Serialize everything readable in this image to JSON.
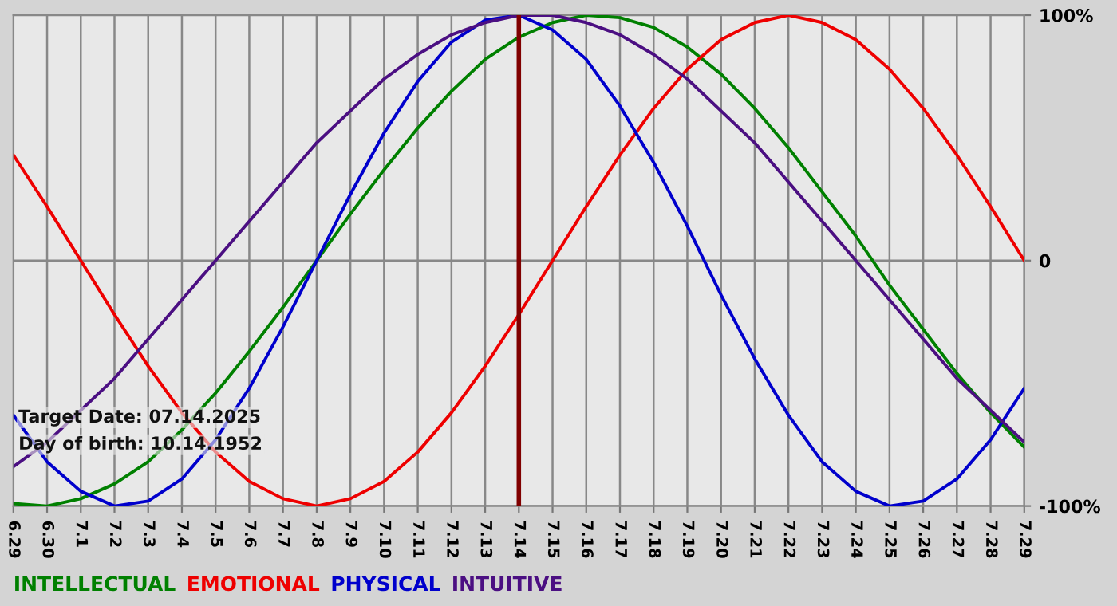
{
  "chart_data": {
    "type": "line",
    "categories": [
      "6.29",
      "6.30",
      "7.1",
      "7.2",
      "7.3",
      "7.4",
      "7.5",
      "7.6",
      "7.7",
      "7.8",
      "7.9",
      "7.10",
      "7.11",
      "7.12",
      "7.13",
      "7.14",
      "7.15",
      "7.16",
      "7.17",
      "7.18",
      "7.19",
      "7.20",
      "7.21",
      "7.22",
      "7.23",
      "7.24",
      "7.25",
      "7.26",
      "7.27",
      "7.28",
      "7.29"
    ],
    "series": [
      {
        "name": "INTELLECTUAL",
        "color": "#008000",
        "values": [
          -99,
          -100,
          -97,
          -91,
          -82,
          -69,
          -54,
          -37,
          -19,
          0,
          19,
          37,
          54,
          69,
          82,
          91,
          97,
          100,
          99,
          95,
          87,
          76,
          62,
          46,
          28,
          10,
          -10,
          -28,
          -46,
          -62,
          -76
        ]
      },
      {
        "name": "EMOTIONAL",
        "color": "#ee0000",
        "values": [
          43,
          22,
          0,
          -22,
          -43,
          -62,
          -78,
          -90,
          -97,
          -100,
          -97,
          -90,
          -78,
          -62,
          -43,
          -22,
          0,
          22,
          43,
          62,
          78,
          90,
          97,
          100,
          97,
          90,
          78,
          62,
          43,
          22,
          0
        ]
      },
      {
        "name": "PHYSICAL",
        "color": "#0000cc",
        "values": [
          -63,
          -82,
          -94,
          -100,
          -98,
          -89,
          -73,
          -52,
          -27,
          0,
          27,
          52,
          73,
          89,
          98,
          100,
          94,
          82,
          63,
          40,
          14,
          -14,
          -40,
          -63,
          -82,
          -94,
          -100,
          -98,
          -89,
          -73,
          -52
        ]
      },
      {
        "name": "INTUITIVE",
        "color": "#4b0f82",
        "values": [
          -84,
          -74,
          -61,
          -48,
          -32,
          -16,
          0,
          16,
          32,
          48,
          61,
          74,
          84,
          92,
          97,
          100,
          100,
          97,
          92,
          84,
          74,
          61,
          48,
          32,
          16,
          0,
          -16,
          -32,
          -48,
          -61,
          -74
        ]
      }
    ],
    "ylim": [
      -100,
      100
    ],
    "yticks": [
      {
        "value": -100,
        "label": "-100%"
      },
      0,
      {
        "value": 100,
        "label": "100%"
      }
    ],
    "ref_lines": [
      {
        "axis": "x",
        "value": "7.14",
        "color": "#800000"
      }
    ],
    "annotations": [
      "Target Date: 07.14.2025",
      "Day of birth: 10.14.1952"
    ],
    "grid": true,
    "legend": "bottom"
  }
}
